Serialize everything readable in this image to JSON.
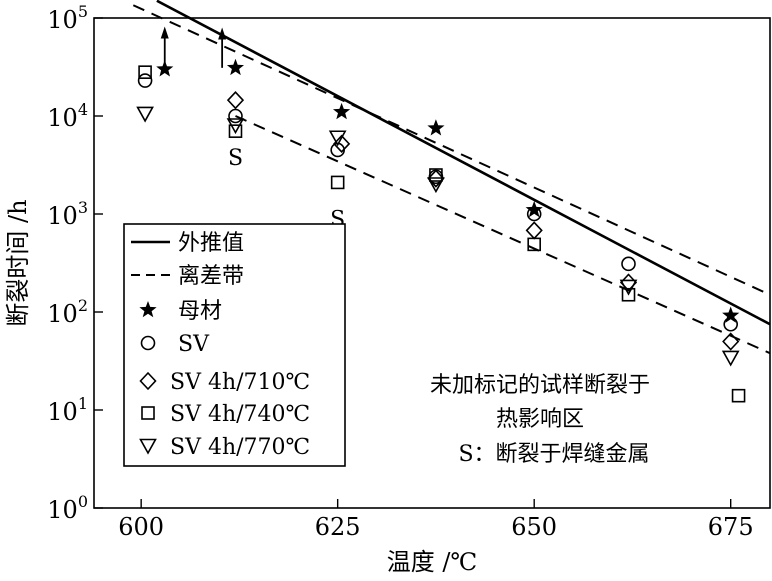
{
  "chart_data": {
    "type": "scatter",
    "xlabel": "温度 /℃",
    "ylabel": "断裂时间 /h",
    "xlim": [
      594,
      680
    ],
    "ylim_log10": [
      0,
      5
    ],
    "y_scale": "log",
    "x_ticks": [
      "600",
      "625",
      "650",
      "675"
    ],
    "x_tick_values": [
      600,
      625,
      650,
      675
    ],
    "y_ticks": [
      {
        "base": "10",
        "exp": "0"
      },
      {
        "base": "10",
        "exp": "1"
      },
      {
        "base": "10",
        "exp": "2"
      },
      {
        "base": "10",
        "exp": "3"
      },
      {
        "base": "10",
        "exp": "4"
      },
      {
        "base": "10",
        "exp": "5"
      }
    ],
    "legend": {
      "placement": "lower-left",
      "entries": [
        {
          "label": "外推值",
          "style": "solid-line"
        },
        {
          "label": "离差带",
          "style": "dashed-line"
        },
        {
          "label": "母材",
          "marker": "star"
        },
        {
          "label": "SV",
          "marker": "circle"
        },
        {
          "label": "SV 4h/710℃",
          "marker": "diamond"
        },
        {
          "label": "SV 4h/740℃",
          "marker": "square"
        },
        {
          "label": "SV 4h/770℃",
          "marker": "triangle-down"
        }
      ]
    },
    "lines": [
      {
        "name": "外推值",
        "style": "solid",
        "points": [
          [
            602,
            150000
          ],
          [
            680,
            75
          ]
        ]
      },
      {
        "name": "离差带",
        "style": "dashed",
        "points": [
          [
            599,
            135000
          ],
          [
            680,
            150
          ]
        ]
      },
      {
        "name": "离差带",
        "style": "dashed",
        "points": [
          [
            612,
            10000
          ],
          [
            680,
            38
          ]
        ]
      }
    ],
    "series": [
      {
        "name": "母材",
        "marker": "star",
        "points": [
          [
            603,
            30000
          ],
          [
            612,
            31000
          ],
          [
            625.5,
            11000
          ],
          [
            637.5,
            7500
          ],
          [
            650,
            1100
          ],
          [
            675,
            92
          ]
        ]
      },
      {
        "name": "SV",
        "marker": "circle",
        "points": [
          [
            600.5,
            23000
          ],
          [
            612,
            10000
          ],
          [
            625,
            4500
          ],
          [
            637.5,
            2400
          ],
          [
            650,
            1000
          ],
          [
            662,
            310
          ],
          [
            675,
            75
          ]
        ]
      },
      {
        "name": "SV 4h/710℃",
        "marker": "diamond",
        "points": [
          [
            612,
            14500
          ],
          [
            625.5,
            5200
          ],
          [
            637.5,
            2300
          ],
          [
            650,
            680
          ],
          [
            662,
            200
          ],
          [
            675,
            50
          ]
        ]
      },
      {
        "name": "SV 4h/740℃",
        "marker": "square",
        "points": [
          [
            600.5,
            28000
          ],
          [
            612,
            7000
          ],
          [
            625,
            2100
          ],
          [
            637.5,
            2500
          ],
          [
            650,
            490
          ],
          [
            662,
            150
          ],
          [
            676,
            14
          ]
        ]
      },
      {
        "name": "SV 4h/770℃",
        "marker": "triangle-down",
        "points": [
          [
            600.5,
            10500
          ],
          [
            612,
            8000
          ],
          [
            625,
            6000
          ],
          [
            637.5,
            2000
          ],
          [
            662,
            180
          ],
          [
            675,
            34
          ]
        ]
      }
    ],
    "arrows": [
      {
        "x": 603,
        "y_from": 30000,
        "y_to": 82000
      },
      {
        "x": 610.3,
        "y_from": 31000,
        "y_to": 80000
      }
    ],
    "point_labels": [
      {
        "text": "S",
        "x": 612,
        "y": 3800
      },
      {
        "text": "S",
        "x": 625,
        "y": 900
      }
    ],
    "annotation": [
      "未加标记的试样断裂于",
      "热影响区",
      "S：断裂于焊缝金属"
    ]
  }
}
